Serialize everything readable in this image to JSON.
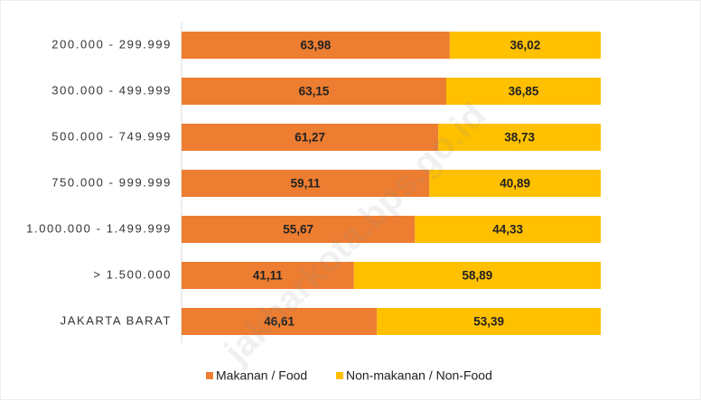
{
  "chart_data": {
    "type": "bar",
    "orientation": "horizontal",
    "stacked": true,
    "categories": [
      "200.000 - 299.999",
      "300.000 - 499.999",
      "500.000 - 749.999",
      "750.000 - 999.999",
      "1.000.000 - 1.499.999",
      "> 1.500.000",
      "JAKARTA BARAT"
    ],
    "series": [
      {
        "name": "Makanan / Food",
        "color": "#ed7d31",
        "values": [
          63.98,
          63.15,
          61.27,
          59.11,
          55.67,
          41.11,
          46.61
        ],
        "value_labels": [
          "63,98",
          "63,15",
          "61,27",
          "59,11",
          "55,67",
          "41,11",
          "46,61"
        ]
      },
      {
        "name": "Non-makanan / Non-Food",
        "color": "#ffc000",
        "values": [
          36.02,
          36.85,
          38.73,
          40.89,
          44.33,
          58.89,
          53.39
        ],
        "value_labels": [
          "36,02",
          "36,85",
          "38,73",
          "40,89",
          "44,33",
          "58,89",
          "53,39"
        ]
      }
    ],
    "xlim": [
      0,
      100
    ],
    "legend": "bottom",
    "watermark": "jakbarkota.bps.go.id"
  }
}
